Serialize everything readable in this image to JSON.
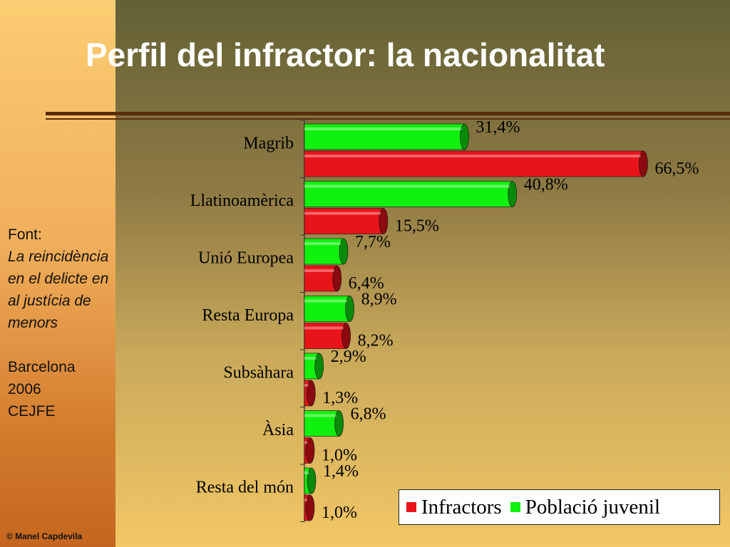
{
  "title": "Perfil del infractor: la nacionalitat",
  "source": {
    "label": "Font:",
    "work": "La reincidència en el delicte en al justícia de menors",
    "place": "Barcelona",
    "year": "2006",
    "org": "CEJFE"
  },
  "credit": "© Manel Capdevila",
  "colors": {
    "infractors": "#e8141a",
    "poblacio": "#11f10f"
  },
  "chart_data": {
    "type": "bar",
    "orientation": "horizontal",
    "title": "",
    "categories": [
      "Magrib",
      "Llatinoamèrica",
      "Unió Europea",
      "Resta Europa",
      "Subsàhara",
      "Àsia",
      "Resta del món"
    ],
    "series": [
      {
        "name": "Població juvenil",
        "values": [
          31.4,
          40.8,
          7.7,
          8.9,
          2.9,
          6.8,
          1.4
        ],
        "labels": [
          "31,4%",
          "40,8%",
          "7,7%",
          "8,9%",
          "2,9%",
          "6,8%",
          "1,4%"
        ]
      },
      {
        "name": "Infractors",
        "values": [
          66.5,
          15.5,
          6.4,
          8.2,
          1.3,
          1.0,
          1.0
        ],
        "labels": [
          "66,5%",
          "15,5%",
          "6,4%",
          "8,2%",
          "1,3%",
          "1,0%",
          "1,0%"
        ]
      }
    ],
    "legend": {
      "position": "bottom-right",
      "entries": [
        "Infractors",
        "Població juvenil"
      ]
    },
    "grid": false
  }
}
